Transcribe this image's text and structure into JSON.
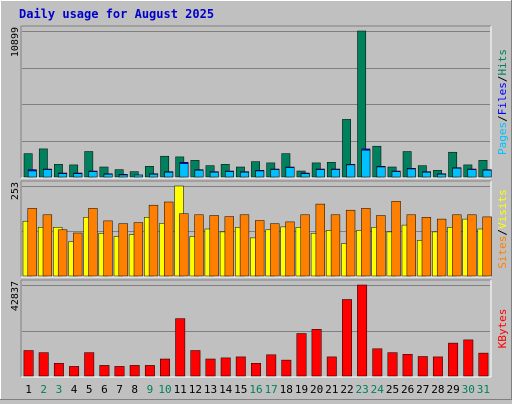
{
  "title": "Daily usage for August 2025",
  "colors": {
    "background": "#c0c0c0",
    "plot_bg": "#c0c0c0",
    "hits": "#00805c",
    "files": "#0000ff",
    "pages": "#00c0ff",
    "visits": "#ffff00",
    "sites": "#ff8000",
    "kbytes": "#ff0000",
    "title": "#0000cc",
    "weekday_label": "#000000",
    "weekend_label": "#00805c"
  },
  "chart_data": [
    {
      "type": "bar",
      "name": "hits-files-pages",
      "ymax_label": "10899",
      "ylim": [
        0,
        10899
      ],
      "legend": [
        "Pages",
        "Files",
        "Hits"
      ],
      "legend_colors": [
        "#00c0ff",
        "#0000ff",
        "#00805c"
      ],
      "categories": [
        "1",
        "2",
        "3",
        "4",
        "5",
        "6",
        "7",
        "8",
        "9",
        "10",
        "11",
        "12",
        "13",
        "14",
        "15",
        "16",
        "17",
        "18",
        "19",
        "20",
        "21",
        "22",
        "23",
        "24",
        "25",
        "26",
        "27",
        "28",
        "29",
        "30",
        "31"
      ],
      "series": [
        {
          "name": "Hits",
          "values": [
            1750,
            2100,
            950,
            900,
            1900,
            750,
            550,
            400,
            800,
            1550,
            1500,
            1250,
            850,
            950,
            750,
            1150,
            1050,
            1750,
            450,
            1050,
            1100,
            4300,
            10899,
            2300,
            750,
            1900,
            850,
            500,
            1850,
            900,
            1250
          ]
        },
        {
          "name": "Files",
          "values": [
            550,
            600,
            300,
            300,
            450,
            250,
            200,
            150,
            250,
            400,
            1100,
            550,
            400,
            450,
            400,
            500,
            600,
            750,
            300,
            600,
            600,
            950,
            2100,
            800,
            450,
            650,
            400,
            250,
            700,
            600,
            550
          ]
        },
        {
          "name": "Pages",
          "values": [
            450,
            550,
            250,
            250,
            400,
            200,
            150,
            150,
            200,
            350,
            1000,
            500,
            350,
            400,
            350,
            450,
            550,
            700,
            250,
            550,
            550,
            900,
            2000,
            750,
            400,
            600,
            350,
            200,
            650,
            550,
            500
          ]
        }
      ]
    },
    {
      "type": "bar",
      "name": "visits-sites",
      "ymax_label": "253",
      "ylim": [
        0,
        253
      ],
      "legend": [
        "Sites",
        "Visits"
      ],
      "legend_colors": [
        "#ff8000",
        "#ffff00"
      ],
      "categories": [
        "1",
        "2",
        "3",
        "4",
        "5",
        "6",
        "7",
        "8",
        "9",
        "10",
        "11",
        "12",
        "13",
        "14",
        "15",
        "16",
        "17",
        "18",
        "19",
        "20",
        "21",
        "22",
        "23",
        "24",
        "25",
        "26",
        "27",
        "28",
        "29",
        "30",
        "31"
      ],
      "series": [
        {
          "name": "Visits",
          "values": [
            154,
            137,
            137,
            96,
            165,
            120,
            111,
            116,
            165,
            148,
            253,
            111,
            132,
            124,
            137,
            107,
            130,
            138,
            137,
            120,
            128,
            91,
            128,
            137,
            124,
            143,
            100,
            124,
            137,
            160,
            132
          ]
        },
        {
          "name": "Sites",
          "values": [
            190,
            172,
            130,
            121,
            190,
            155,
            147,
            150,
            199,
            208,
            175,
            172,
            170,
            167,
            172,
            156,
            147,
            152,
            172,
            202,
            172,
            185,
            190,
            170,
            210,
            172,
            165,
            160,
            172,
            172,
            166
          ]
        }
      ]
    },
    {
      "type": "bar",
      "name": "kbytes",
      "ymax_label": "42837",
      "ylim": [
        0,
        42837
      ],
      "legend": [
        "KBytes"
      ],
      "legend_colors": [
        "#ff0000"
      ],
      "categories": [
        "1",
        "2",
        "3",
        "4",
        "5",
        "6",
        "7",
        "8",
        "9",
        "10",
        "11",
        "12",
        "13",
        "14",
        "15",
        "16",
        "17",
        "18",
        "19",
        "20",
        "21",
        "22",
        "23",
        "24",
        "25",
        "26",
        "27",
        "28",
        "29",
        "30",
        "31"
      ],
      "series": [
        {
          "name": "KBytes",
          "values": [
            12000,
            11000,
            6000,
            4500,
            11000,
            5000,
            4500,
            5000,
            5000,
            8000,
            27000,
            12000,
            8000,
            8500,
            9000,
            6000,
            10000,
            7500,
            20000,
            22000,
            9000,
            36000,
            42837,
            12800,
            11000,
            10200,
            9200,
            9000,
            15500,
            17000,
            10800
          ]
        }
      ]
    }
  ],
  "xaxis": {
    "labels": [
      "1",
      "2",
      "3",
      "4",
      "5",
      "6",
      "7",
      "8",
      "9",
      "10",
      "11",
      "12",
      "13",
      "14",
      "15",
      "16",
      "17",
      "18",
      "19",
      "20",
      "21",
      "22",
      "23",
      "24",
      "25",
      "26",
      "27",
      "28",
      "29",
      "30",
      "31"
    ],
    "weekend": [
      2,
      3,
      9,
      10,
      16,
      17,
      23,
      24,
      30,
      31
    ]
  }
}
